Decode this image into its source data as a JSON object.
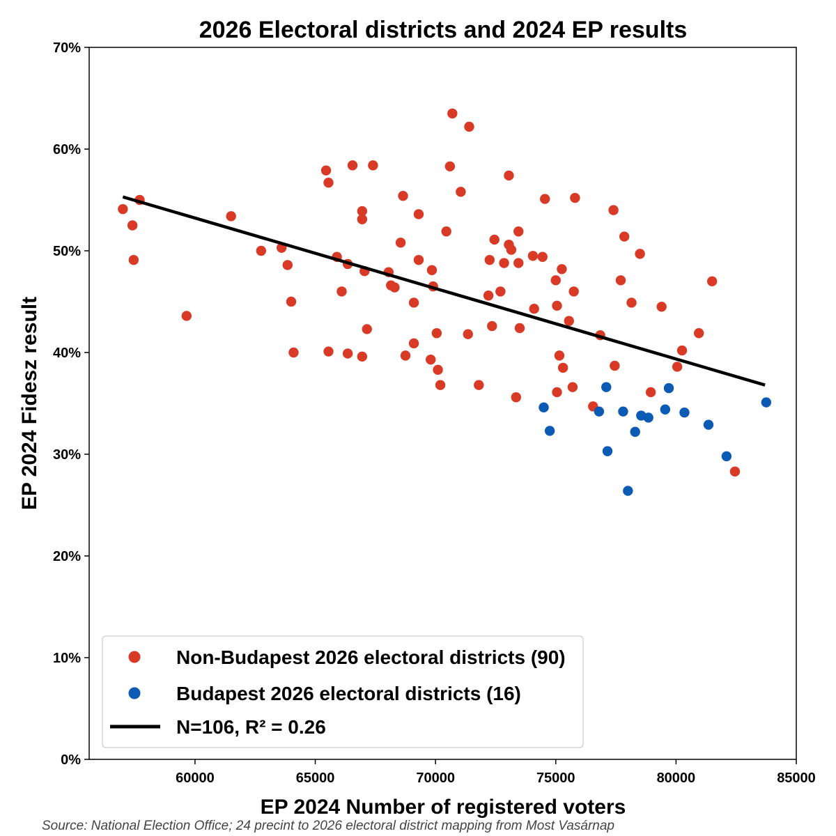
{
  "chart_data": {
    "type": "scatter",
    "title": "2026 Electoral districts and 2024 EP results",
    "xlabel": "EP 2024 Number of registered voters",
    "ylabel": "EP 2024 Fidesz result",
    "source": "Source: National Election Office; 24 precint to 2026 electoral district mapping from Most Vasárnap",
    "xlim": [
      55600,
      85000
    ],
    "ylim": [
      0,
      70
    ],
    "x_ticks": [
      60000,
      65000,
      70000,
      75000,
      80000,
      85000
    ],
    "y_ticks": [
      0,
      10,
      20,
      30,
      40,
      50,
      60,
      70
    ],
    "y_tick_labels": [
      "0%",
      "10%",
      "20%",
      "30%",
      "40%",
      "50%",
      "60%",
      "70%"
    ],
    "grid": false,
    "legend_position": "bottom-left",
    "legend": [
      {
        "label": "Non-Budapest 2026 electoral districts (90)",
        "marker": "dot",
        "color": "#d93a26"
      },
      {
        "label": "Budapest 2026 electoral districts (16)",
        "marker": "dot",
        "color": "#0b5ab4"
      },
      {
        "label": "N=106, R² = 0.26",
        "marker": "line",
        "color": "#000000"
      }
    ],
    "series": [
      {
        "name": "Non-Budapest 2026 electoral districts (90)",
        "color": "#d93a26",
        "points": [
          [
            57000,
            54.1
          ],
          [
            57400,
            52.5
          ],
          [
            57450,
            49.1
          ],
          [
            57700,
            55.0
          ],
          [
            59650,
            43.6
          ],
          [
            61500,
            53.4
          ],
          [
            62750,
            50.0
          ],
          [
            63600,
            50.3
          ],
          [
            63850,
            48.6
          ],
          [
            64000,
            45.0
          ],
          [
            64100,
            40.0
          ],
          [
            65450,
            57.9
          ],
          [
            65550,
            56.7
          ],
          [
            65550,
            40.1
          ],
          [
            65900,
            49.4
          ],
          [
            66100,
            46.0
          ],
          [
            66350,
            48.7
          ],
          [
            66350,
            39.9
          ],
          [
            66550,
            58.4
          ],
          [
            66950,
            53.9
          ],
          [
            66950,
            53.1
          ],
          [
            66950,
            39.6
          ],
          [
            67050,
            48.0
          ],
          [
            67150,
            42.3
          ],
          [
            67400,
            58.4
          ],
          [
            68050,
            47.9
          ],
          [
            68150,
            46.6
          ],
          [
            68300,
            46.4
          ],
          [
            68550,
            50.8
          ],
          [
            68650,
            55.4
          ],
          [
            68750,
            39.7
          ],
          [
            69100,
            44.9
          ],
          [
            69100,
            40.9
          ],
          [
            69300,
            53.6
          ],
          [
            69300,
            49.1
          ],
          [
            69800,
            39.3
          ],
          [
            69850,
            48.1
          ],
          [
            69900,
            46.5
          ],
          [
            70050,
            41.9
          ],
          [
            70100,
            38.3
          ],
          [
            70200,
            36.8
          ],
          [
            70450,
            51.9
          ],
          [
            70600,
            58.3
          ],
          [
            70700,
            63.5
          ],
          [
            71050,
            55.8
          ],
          [
            71350,
            41.8
          ],
          [
            71400,
            62.2
          ],
          [
            71800,
            36.8
          ],
          [
            72200,
            45.6
          ],
          [
            72250,
            49.1
          ],
          [
            72350,
            42.6
          ],
          [
            72450,
            51.1
          ],
          [
            72700,
            46.0
          ],
          [
            72850,
            48.8
          ],
          [
            73050,
            50.6
          ],
          [
            73050,
            57.4
          ],
          [
            73150,
            50.1
          ],
          [
            73350,
            35.6
          ],
          [
            73450,
            51.9
          ],
          [
            73450,
            48.8
          ],
          [
            73500,
            42.4
          ],
          [
            74050,
            49.5
          ],
          [
            74100,
            44.3
          ],
          [
            74450,
            49.4
          ],
          [
            74550,
            55.1
          ],
          [
            75000,
            47.1
          ],
          [
            75050,
            44.6
          ],
          [
            75050,
            36.1
          ],
          [
            75150,
            39.7
          ],
          [
            75250,
            48.2
          ],
          [
            75300,
            38.5
          ],
          [
            75550,
            43.1
          ],
          [
            75700,
            36.6
          ],
          [
            75750,
            46.0
          ],
          [
            75800,
            55.2
          ],
          [
            76550,
            34.7
          ],
          [
            76850,
            41.7
          ],
          [
            77400,
            54.0
          ],
          [
            77450,
            38.7
          ],
          [
            77700,
            47.1
          ],
          [
            77850,
            51.4
          ],
          [
            78150,
            44.9
          ],
          [
            78500,
            49.7
          ],
          [
            78950,
            36.1
          ],
          [
            79400,
            44.5
          ],
          [
            80050,
            38.6
          ],
          [
            80250,
            40.2
          ],
          [
            80950,
            41.9
          ],
          [
            81500,
            47.0
          ],
          [
            82450,
            28.3
          ]
        ]
      },
      {
        "name": "Budapest 2026 electoral districts (16)",
        "color": "#0b5ab4",
        "points": [
          [
            74500,
            34.6
          ],
          [
            74750,
            32.3
          ],
          [
            76800,
            34.2
          ],
          [
            77100,
            36.6
          ],
          [
            77150,
            30.3
          ],
          [
            77800,
            34.2
          ],
          [
            78000,
            26.4
          ],
          [
            78300,
            32.2
          ],
          [
            78550,
            33.8
          ],
          [
            78850,
            33.6
          ],
          [
            79550,
            34.4
          ],
          [
            79700,
            36.5
          ],
          [
            80350,
            34.1
          ],
          [
            81350,
            32.9
          ],
          [
            82100,
            29.8
          ],
          [
            83750,
            35.1
          ]
        ]
      }
    ],
    "trendline": {
      "name": "N=106, R² = 0.26",
      "color": "#000000",
      "points": [
        [
          57000,
          55.3
        ],
        [
          83700,
          36.8
        ]
      ]
    }
  }
}
